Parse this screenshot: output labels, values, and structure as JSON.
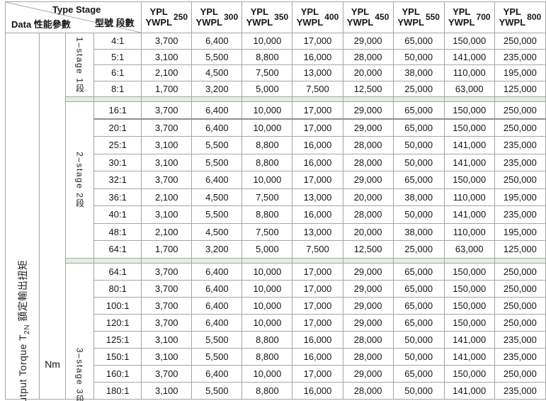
{
  "colors": {
    "border": "#a6a6a6",
    "separator_band": "#e1efe2",
    "thick_divider": "#8f8f8f",
    "text": "#151515",
    "background": "#ffffff"
  },
  "header": {
    "corner": {
      "type_stage_en": "Type Stage",
      "type_stage_cjk": "型號 段數",
      "data_label": "Data 性能參數"
    },
    "columns": [
      {
        "brand_top": "YPL",
        "brand_bottom": "YWPL",
        "size": "250"
      },
      {
        "brand_top": "YPL",
        "brand_bottom": "YWPL",
        "size": "300"
      },
      {
        "brand_top": "YPL",
        "brand_bottom": "YWPL",
        "size": "350"
      },
      {
        "brand_top": "YPL",
        "brand_bottom": "YWPL",
        "size": "400"
      },
      {
        "brand_top": "YPL",
        "brand_bottom": "YWPL",
        "size": "450"
      },
      {
        "brand_top": "YPL",
        "brand_bottom": "YWPL",
        "size": "550"
      },
      {
        "brand_top": "YPL",
        "brand_bottom": "YWPL",
        "size": "700"
      },
      {
        "brand_top": "YPL",
        "brand_bottom": "YWPL",
        "size": "800"
      }
    ]
  },
  "left_labels": {
    "torque_prefix": "Output Torque T",
    "torque_sub": "2N",
    "torque_suffix": " 額定輸出扭矩",
    "unit": "Nm"
  },
  "groups": [
    {
      "stage_label": "1–stage 1段",
      "rows": [
        {
          "ratio": "4:1",
          "values": [
            "3,700",
            "6,400",
            "10,000",
            "17,000",
            "29,000",
            "65,000",
            "150,000",
            "250,000"
          ]
        },
        {
          "ratio": "5:1",
          "values": [
            "3,100",
            "5,500",
            "8,800",
            "16,000",
            "28,000",
            "50,000",
            "141,000",
            "235,000"
          ]
        },
        {
          "ratio": "6:1",
          "values": [
            "2,100",
            "4,500",
            "7,500",
            "13,000",
            "20,000",
            "38,000",
            "110,000",
            "195,000"
          ]
        },
        {
          "ratio": "8:1",
          "values": [
            "1,700",
            "3,200",
            "5,000",
            "7,500",
            "12,500",
            "25,000",
            "63,000",
            "125,000"
          ]
        }
      ]
    },
    {
      "stage_label": "2–stage 2段",
      "rows": [
        {
          "ratio": "16:1",
          "values": [
            "3,700",
            "6,400",
            "10,000",
            "17,000",
            "29,000",
            "65,000",
            "150,000",
            "250,000"
          ]
        },
        {
          "ratio": "20:1",
          "values": [
            "3,700",
            "6,400",
            "10,000",
            "17,000",
            "29,000",
            "65,000",
            "150,000",
            "250,000"
          ]
        },
        {
          "ratio": "25:1",
          "values": [
            "3,100",
            "5,500",
            "8,800",
            "16,000",
            "28,000",
            "50,000",
            "141,000",
            "235,000"
          ]
        },
        {
          "ratio": "30:1",
          "values": [
            "3,100",
            "5,500",
            "8,800",
            "16,000",
            "28,000",
            "50,000",
            "141,000",
            "235,000"
          ]
        },
        {
          "ratio": "32:1",
          "values": [
            "3,700",
            "6,400",
            "10,000",
            "17,000",
            "29,000",
            "65,000",
            "150,000",
            "250,000"
          ]
        },
        {
          "ratio": "36:1",
          "values": [
            "2,100",
            "4,500",
            "7,500",
            "13,000",
            "20,000",
            "38,000",
            "110,000",
            "195,000"
          ]
        },
        {
          "ratio": "40:1",
          "values": [
            "3,100",
            "5,500",
            "8,800",
            "16,000",
            "28,000",
            "50,000",
            "141,000",
            "235,000"
          ]
        },
        {
          "ratio": "48:1",
          "values": [
            "2,100",
            "4,500",
            "7,500",
            "13,000",
            "20,000",
            "38,000",
            "110,000",
            "195,000"
          ]
        },
        {
          "ratio": "64:1",
          "values": [
            "1,700",
            "3,200",
            "5,000",
            "7,500",
            "12,500",
            "25,000",
            "63,000",
            "125,000"
          ]
        }
      ]
    },
    {
      "stage_label": "3–stage 3段",
      "rows": [
        {
          "ratio": "64:1",
          "values": [
            "3,700",
            "6,400",
            "10,000",
            "17,000",
            "29,000",
            "65,000",
            "150,000",
            "250,000"
          ]
        },
        {
          "ratio": "80:1",
          "values": [
            "3,700",
            "6,400",
            "10,000",
            "17,000",
            "29,000",
            "65,000",
            "150,000",
            "250,000"
          ]
        },
        {
          "ratio": "100:1",
          "values": [
            "3,700",
            "6,400",
            "10,000",
            "17,000",
            "29,000",
            "65,000",
            "150,000",
            "250,000"
          ]
        },
        {
          "ratio": "120:1",
          "values": [
            "3,700",
            "6,400",
            "10,000",
            "17,000",
            "29,000",
            "65,000",
            "150,000",
            "250,000"
          ]
        },
        {
          "ratio": "125:1",
          "values": [
            "3,100",
            "5,500",
            "8,800",
            "16,000",
            "28,000",
            "50,000",
            "141,000",
            "235,000"
          ]
        },
        {
          "ratio": "150:1",
          "values": [
            "3,100",
            "5,500",
            "8,800",
            "16,000",
            "28,000",
            "50,000",
            "141,000",
            "235,000"
          ]
        },
        {
          "ratio": "160:1",
          "values": [
            "3,700",
            "6,400",
            "10,000",
            "17,000",
            "29,000",
            "65,000",
            "150,000",
            "250,000"
          ]
        },
        {
          "ratio": "180:1",
          "values": [
            "3,100",
            "5,500",
            "8,800",
            "16,000",
            "28,000",
            "50,000",
            "141,000",
            "235,000"
          ]
        }
      ]
    }
  ]
}
